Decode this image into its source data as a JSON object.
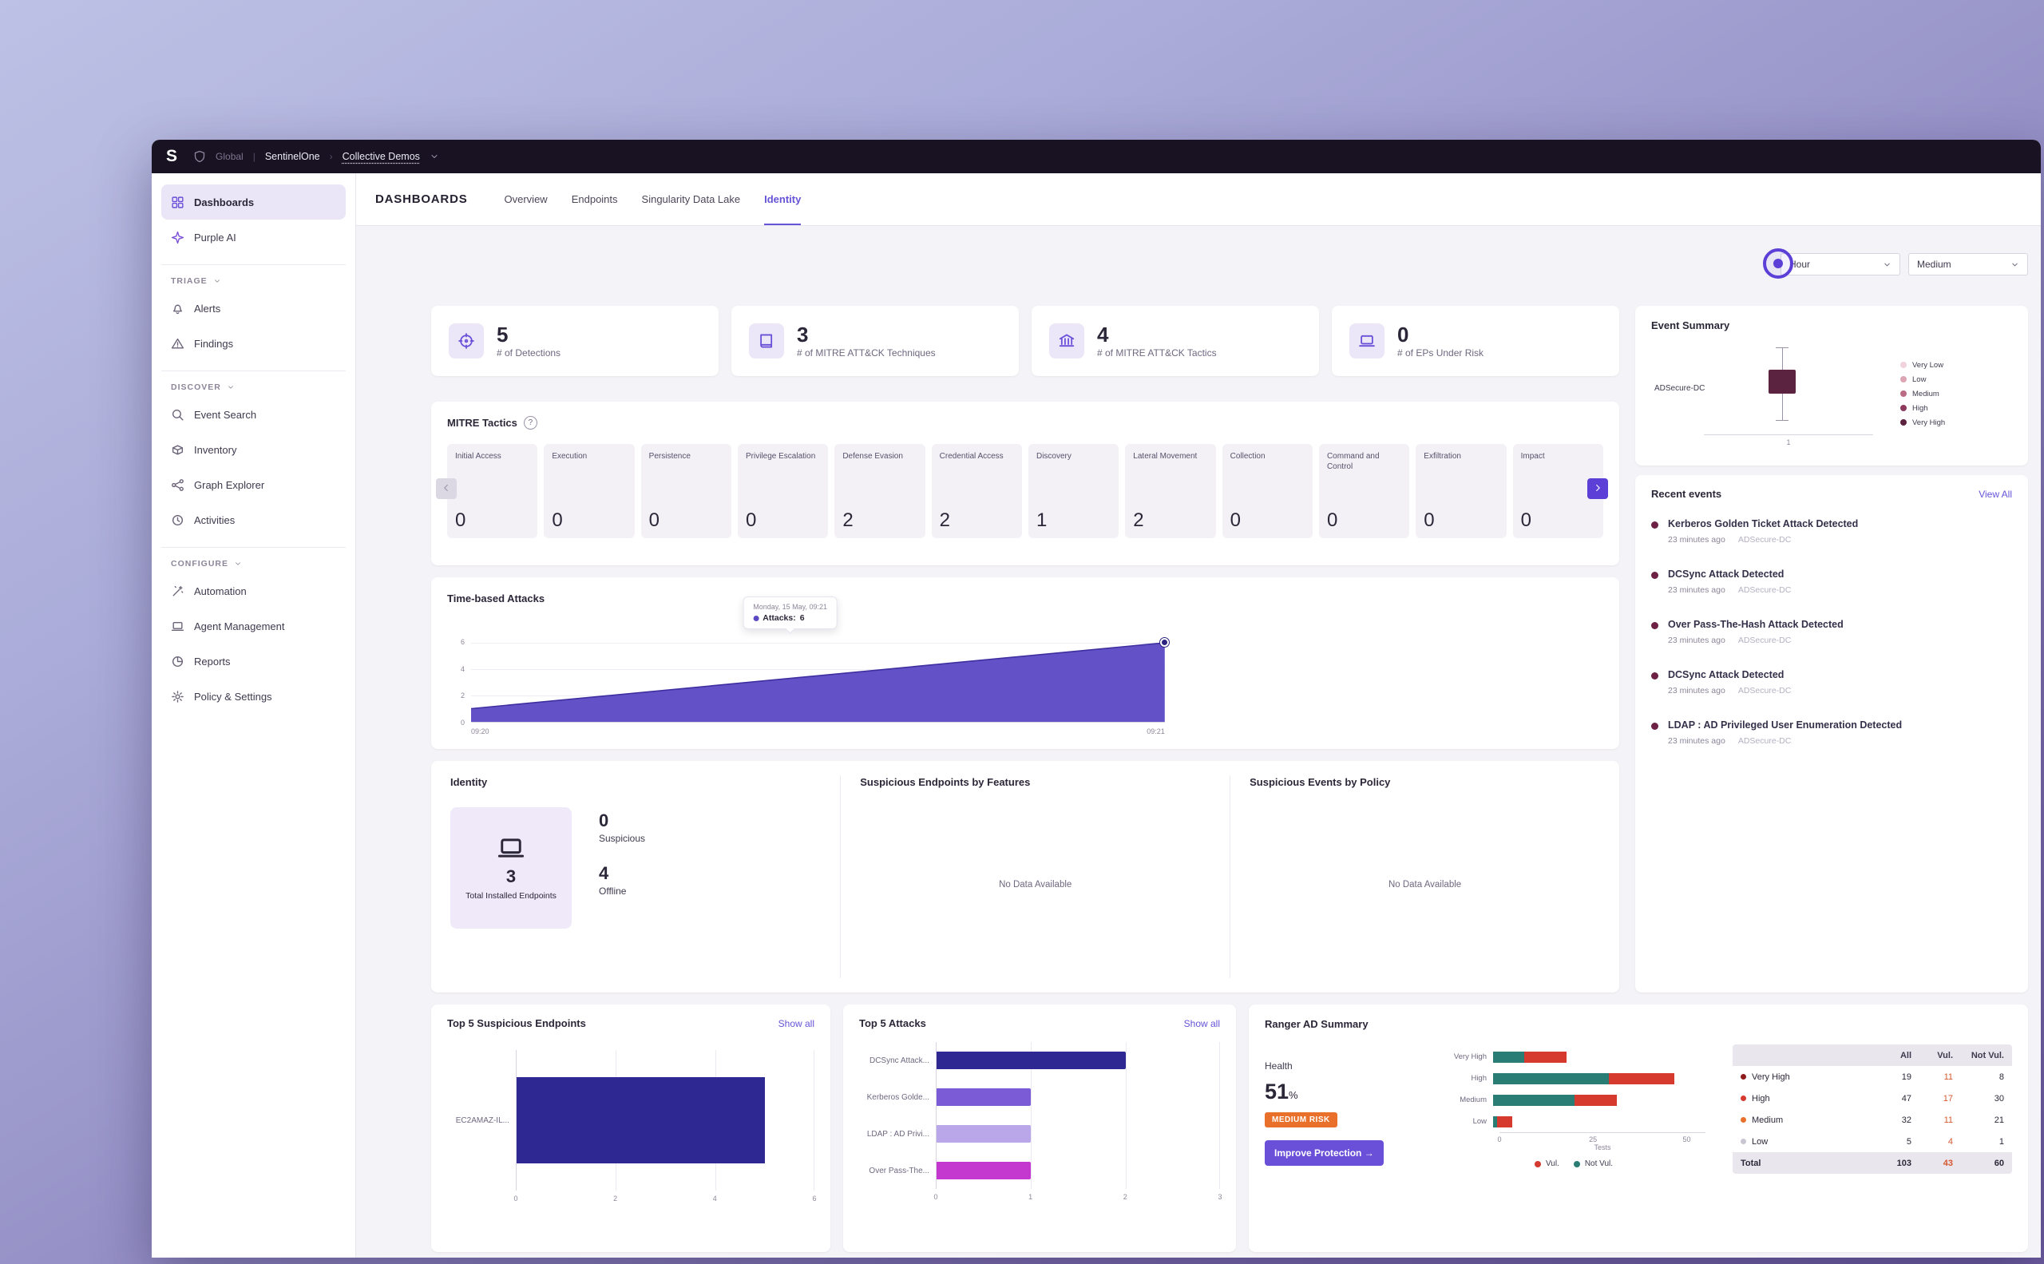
{
  "topbar": {
    "logo": "S",
    "scope": "Global",
    "sep1": "|",
    "org": "SentinelOne",
    "sep2": "›",
    "site": "Collective Demos"
  },
  "header": {
    "title": "DASHBOARDS",
    "tabs": [
      {
        "label": "Overview"
      },
      {
        "label": "Endpoints"
      },
      {
        "label": "Singularity Data Lake"
      },
      {
        "label": "Identity"
      }
    ]
  },
  "filters": {
    "time_range": "Hour",
    "severity": "Medium"
  },
  "sidebar": {
    "main": [
      {
        "label": "Dashboards",
        "icon": "grid"
      },
      {
        "label": "Purple AI",
        "icon": "sparkle"
      }
    ],
    "groups": [
      {
        "title": "TRIAGE",
        "items": [
          {
            "label": "Alerts",
            "icon": "bell"
          },
          {
            "label": "Findings",
            "icon": "warning"
          }
        ]
      },
      {
        "title": "DISCOVER",
        "items": [
          {
            "label": "Event Search",
            "icon": "search"
          },
          {
            "label": "Inventory",
            "icon": "box"
          },
          {
            "label": "Graph Explorer",
            "icon": "graph"
          },
          {
            "label": "Activities",
            "icon": "clock"
          }
        ]
      },
      {
        "title": "CONFIGURE",
        "items": [
          {
            "label": "Automation",
            "icon": "wand"
          },
          {
            "label": "Agent Management",
            "icon": "laptop"
          },
          {
            "label": "Reports",
            "icon": "pie"
          },
          {
            "label": "Policy & Settings",
            "icon": "gear"
          }
        ]
      }
    ]
  },
  "stats": [
    {
      "value": "5",
      "label": "# of Detections",
      "icon": "target"
    },
    {
      "value": "3",
      "label": "# of MITRE ATT&CK Techniques",
      "icon": "book"
    },
    {
      "value": "4",
      "label": "# of MITRE ATT&CK Tactics",
      "icon": "bank"
    },
    {
      "value": "0",
      "label": "# of EPs Under Risk",
      "icon": "laptop"
    }
  ],
  "mitre": {
    "title": "MITRE Tactics",
    "help": "?",
    "tactics": [
      {
        "name": "Initial Access",
        "count": "0"
      },
      {
        "name": "Execution",
        "count": "0"
      },
      {
        "name": "Persistence",
        "count": "0"
      },
      {
        "name": "Privilege Escalation",
        "count": "0"
      },
      {
        "name": "Defense Evasion",
        "count": "2"
      },
      {
        "name": "Credential Access",
        "count": "2"
      },
      {
        "name": "Discovery",
        "count": "1"
      },
      {
        "name": "Lateral Movement",
        "count": "2"
      },
      {
        "name": "Collection",
        "count": "0"
      },
      {
        "name": "Command and Control",
        "count": "0"
      },
      {
        "name": "Exfiltration",
        "count": "0"
      },
      {
        "name": "Impact",
        "count": "0"
      }
    ]
  },
  "chart_data": [
    {
      "id": "timeline",
      "type": "area",
      "title": "Time-based Attacks",
      "x": [
        "09:20",
        "09:21"
      ],
      "values": [
        1,
        6
      ],
      "ylim": [
        0,
        6
      ],
      "yticks": [
        "6",
        "4",
        "2",
        "0"
      ],
      "color": "#5b49c4",
      "tooltip": {
        "date": "Monday, 15 May, 09:21",
        "label": "Attacks:",
        "value": "6"
      }
    },
    {
      "id": "top_endpoints",
      "type": "bar",
      "title": "Top 5 Suspicious Endpoints",
      "categories": [
        "EC2AMAZ-IL..."
      ],
      "values": [
        5
      ],
      "xmax": 6,
      "xticks": [
        "0",
        "2",
        "4",
        "6"
      ],
      "color": "#2e2893"
    },
    {
      "id": "top_attacks",
      "type": "bar",
      "title": "Top 5 Attacks",
      "categories": [
        "DCSync Attack...",
        "Kerberos Golde...",
        "LDAP : AD Privi...",
        "Over Pass-The..."
      ],
      "values": [
        2,
        1,
        1,
        1
      ],
      "xmax": 3,
      "xticks": [
        "0",
        "1",
        "2",
        "3"
      ],
      "colors": [
        "#2e2893",
        "#7c5bd6",
        "#b9a7ea",
        "#c438cf"
      ]
    },
    {
      "id": "ranger_tests",
      "type": "bar-stacked",
      "categories": [
        "Very High",
        "High",
        "Medium",
        "Low"
      ],
      "xmax": 55,
      "xticks": [
        "0",
        "25",
        "50"
      ],
      "xlabel": "Tests",
      "series": [
        {
          "name": "Not Vul.",
          "color": "#2a7d74"
        },
        {
          "name": "Vul.",
          "color": "#d63a2f"
        }
      ]
    }
  ],
  "identity": {
    "title": "Identity",
    "tile": {
      "value": "3",
      "label": "Total Installed Endpoints",
      "icon": "laptop"
    },
    "stats": [
      {
        "value": "0",
        "label": "Suspicious"
      },
      {
        "value": "4",
        "label": "Offline"
      }
    ]
  },
  "suspicious_endpoints": {
    "title": "Suspicious Endpoints by Features",
    "empty": "No Data Available"
  },
  "suspicious_events": {
    "title": "Suspicious Events by Policy",
    "empty": "No Data Available"
  },
  "top_endpoints_card": {
    "show_all": "Show all"
  },
  "top_attacks_card": {
    "show_all": "Show all"
  },
  "ranger": {
    "title": "Ranger AD Summary",
    "health_label": "Health",
    "health_value": "51",
    "health_unit": "%",
    "risk_badge": "MEDIUM RISK",
    "cta_label": "Improve Protection →",
    "legend": [
      {
        "label": "Vul.",
        "color": "#d63a2f"
      },
      {
        "label": "Not Vul.",
        "color": "#2a7d74"
      }
    ],
    "table_header": {
      "all": "All",
      "vul": "Vul.",
      "notvul": "Not Vul."
    },
    "rows": [
      {
        "label": "Very High",
        "all": "19",
        "vul": "11",
        "notvul": "8",
        "dot": "#8e1b1b"
      },
      {
        "label": "High",
        "all": "47",
        "vul": "17",
        "notvul": "30",
        "dot": "#d63a2f"
      },
      {
        "label": "Medium",
        "all": "32",
        "vul": "11",
        "notvul": "21",
        "dot": "#e8702a"
      },
      {
        "label": "Low",
        "all": "5",
        "vul": "4",
        "notvul": "1",
        "dot": "#c9c5d2"
      }
    ],
    "total": {
      "label": "Total",
      "all": "103",
      "vul": "43",
      "notvul": "60"
    }
  },
  "event_summary": {
    "title": "Event Summary",
    "asset": "ADSecure-DC",
    "xtick": "1",
    "box_color": "#5c2340",
    "legend": [
      {
        "label": "Very Low",
        "color": "#f0d3da"
      },
      {
        "label": "Low",
        "color": "#dda5b4"
      },
      {
        "label": "Medium",
        "color": "#bb6a84"
      },
      {
        "label": "High",
        "color": "#8e3a5c"
      },
      {
        "label": "Very High",
        "color": "#5c2340"
      }
    ]
  },
  "recent_events": {
    "title": "Recent events",
    "view_all": "View All",
    "dot_color": "#6d2145",
    "items": [
      {
        "title": "Kerberos Golden Ticket Attack Detected",
        "time": "23 minutes ago",
        "asset": "ADSecure-DC"
      },
      {
        "title": "DCSync Attack Detected",
        "time": "23 minutes ago",
        "asset": "ADSecure-DC"
      },
      {
        "title": "Over Pass-The-Hash Attack Detected",
        "time": "23 minutes ago",
        "asset": "ADSecure-DC"
      },
      {
        "title": "DCSync Attack Detected",
        "time": "23 minutes ago",
        "asset": "ADSecure-DC"
      },
      {
        "title": "LDAP : AD Privileged User Enumeration Detected",
        "time": "23 minutes ago",
        "asset": "ADSecure-DC"
      }
    ]
  }
}
